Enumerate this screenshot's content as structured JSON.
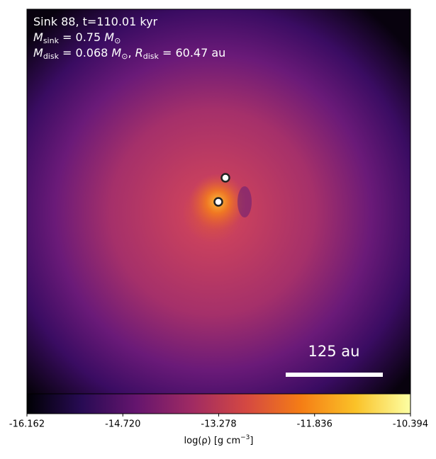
{
  "chart_data": {
    "type": "image",
    "annotations": [
      [
        {
          "text": "Sink 88, t=110.01 kyr"
        }
      ],
      [
        {
          "text": "M",
          "italic": true
        },
        {
          "text": "sink",
          "sub": true
        },
        {
          "text": " = 0.75 "
        },
        {
          "text": "M",
          "italic": true
        },
        {
          "text": "⊙",
          "sub": true
        }
      ],
      [
        {
          "text": "M",
          "italic": true
        },
        {
          "text": "disk",
          "sub": true
        },
        {
          "text": " = 0.068 "
        },
        {
          "text": "M",
          "italic": true
        },
        {
          "text": "⊙",
          "sub": true
        },
        {
          "text": ", "
        },
        {
          "text": "R",
          "italic": true
        },
        {
          "text": "disk",
          "sub": true
        },
        {
          "text": " = 60.47 au"
        }
      ]
    ],
    "scale_bar_label": "125 au",
    "colorbar": {
      "label": [
        {
          "text": "log(ρ) [g cm"
        },
        {
          "text": "−3",
          "sup": true
        },
        {
          "text": "]"
        }
      ],
      "xlim": [
        -16.162,
        -10.394
      ],
      "xticks": [
        -16.162,
        {
          "value": -14.72,
          "label": "-14.720"
        },
        -13.278,
        -11.836,
        -10.394
      ],
      "colors": [
        "#000004",
        "#280b54",
        "#65156e",
        "#9f2a63",
        "#d44842",
        "#f57d15",
        "#fac228",
        "#fcffa4"
      ]
    }
  }
}
